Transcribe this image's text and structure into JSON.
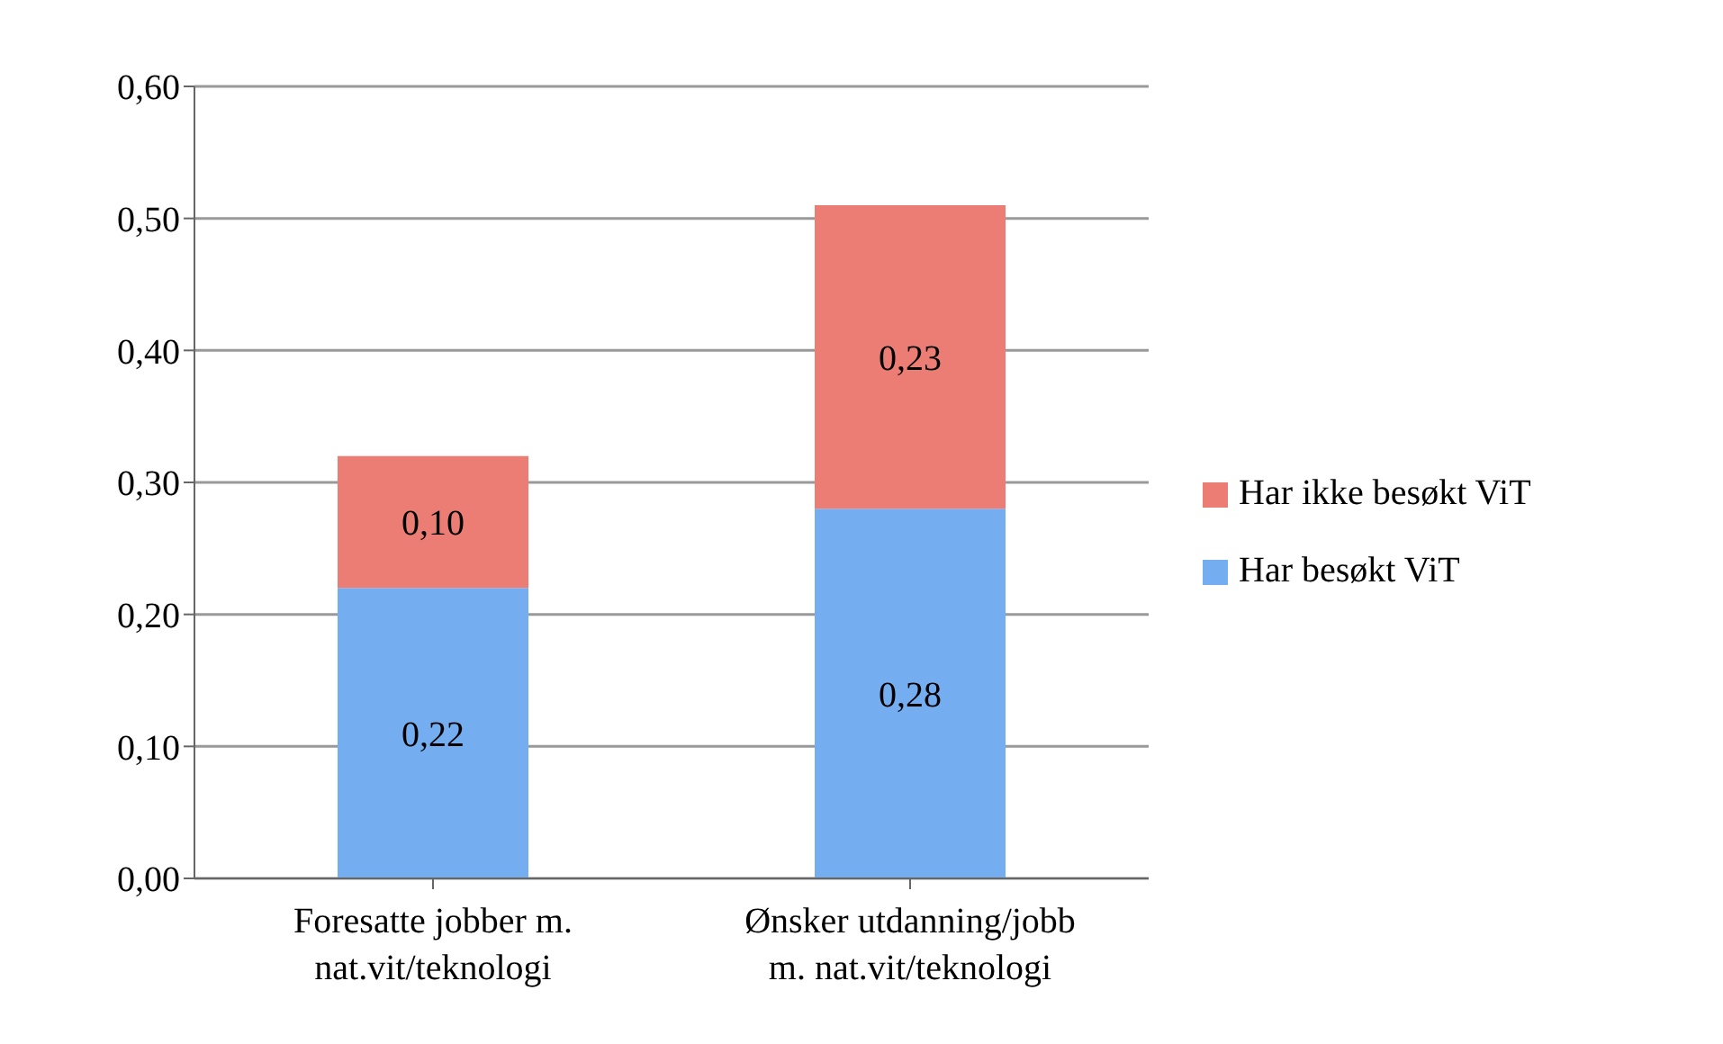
{
  "chart_data": {
    "type": "bar",
    "stacked": true,
    "categories": [
      "Foresatte jobber m. nat.vit/teknologi",
      "Ønsker utdanning/jobb m. nat.vit/teknologi"
    ],
    "series": [
      {
        "name": "Har besøkt ViT",
        "color": "#74aef0",
        "values": [
          0.22,
          0.28
        ],
        "value_labels": [
          "0,22",
          "0,28"
        ]
      },
      {
        "name": "Har ikke besøkt ViT",
        "color": "#ec7d74",
        "values": [
          0.1,
          0.23
        ],
        "value_labels": [
          "0,10",
          "0,23"
        ]
      }
    ],
    "ylim": [
      0,
      0.6
    ],
    "yticks": [
      {
        "value": 0,
        "label": "0,00"
      },
      {
        "value": 0.1,
        "label": "0,10"
      },
      {
        "value": 0.2,
        "label": "0,20"
      },
      {
        "value": 0.3,
        "label": "0,30"
      },
      {
        "value": 0.4,
        "label": "0,40"
      },
      {
        "value": 0.5,
        "label": "0,50"
      },
      {
        "value": 0.6,
        "label": "0,60"
      }
    ],
    "grid": "y",
    "legend": "right"
  }
}
